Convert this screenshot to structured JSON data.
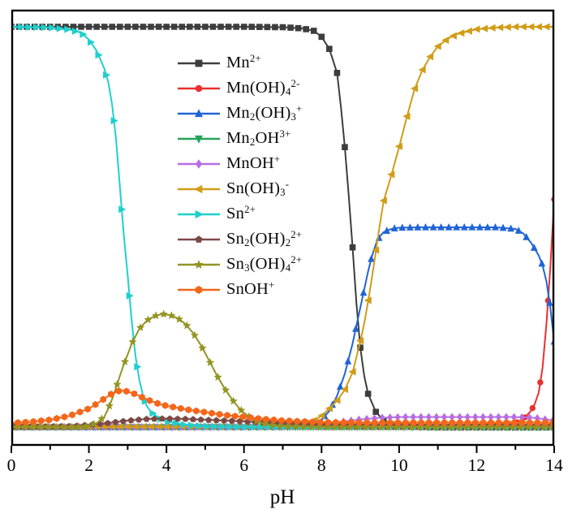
{
  "figure": {
    "background": "#ffffff",
    "frame_color": "#000000"
  },
  "chart_data": {
    "type": "line",
    "title": "",
    "xlabel": "pH",
    "ylabel": "",
    "x_range": [
      0,
      14
    ],
    "y_range": [
      0,
      1.0
    ],
    "x_major_ticks": [
      0,
      2,
      4,
      6,
      8,
      10,
      12,
      14
    ],
    "x_major_tick_labels": [
      "0",
      "2",
      "4",
      "6",
      "8",
      "10",
      "12",
      "14"
    ],
    "x_minor_ticks": [
      1,
      3,
      5,
      7,
      9,
      11,
      13
    ],
    "y_tick_labels": [],
    "grid": false,
    "legend_position": "upper-left-inside",
    "series": [
      {
        "name": "mn2plus",
        "label": "Mn^{2+}",
        "color": "#3d3d3d",
        "marker": "square",
        "marker_size": 3.8,
        "points": [
          [
            0,
            1
          ],
          [
            2,
            1
          ],
          [
            4,
            1
          ],
          [
            6,
            1
          ],
          [
            7,
            0.999
          ],
          [
            7.5,
            0.996
          ],
          [
            7.8,
            0.99
          ],
          [
            8,
            0.975
          ],
          [
            8.2,
            0.945
          ],
          [
            8.4,
            0.885
          ],
          [
            8.5,
            0.8
          ],
          [
            8.6,
            0.7
          ],
          [
            8.7,
            0.58
          ],
          [
            8.8,
            0.45
          ],
          [
            8.9,
            0.31
          ],
          [
            9,
            0.2
          ],
          [
            9.1,
            0.13
          ],
          [
            9.2,
            0.085
          ],
          [
            9.4,
            0.04
          ],
          [
            9.6,
            0.018
          ],
          [
            9.8,
            0.008
          ],
          [
            10,
            0.004
          ],
          [
            10.5,
            0.002
          ],
          [
            11,
            0.001
          ],
          [
            12,
            0.001
          ],
          [
            13,
            0.001
          ],
          [
            14,
            0.001
          ]
        ]
      },
      {
        "name": "mnoh4",
        "label": "Mn(OH)_{4}^{2-}",
        "color": "#e8302f",
        "marker": "circle",
        "marker_size": 3.7,
        "points": [
          [
            0,
            0.002
          ],
          [
            4,
            0.002
          ],
          [
            8,
            0.002
          ],
          [
            10,
            0.002
          ],
          [
            12,
            0.003
          ],
          [
            12.6,
            0.005
          ],
          [
            13,
            0.012
          ],
          [
            13.2,
            0.022
          ],
          [
            13.4,
            0.042
          ],
          [
            13.5,
            0.06
          ],
          [
            13.6,
            0.088
          ],
          [
            13.7,
            0.15
          ],
          [
            13.8,
            0.26
          ],
          [
            13.9,
            0.4
          ],
          [
            13.95,
            0.48
          ],
          [
            14,
            0.57
          ]
        ]
      },
      {
        "name": "mn2oh3",
        "label": "Mn_{2}(OH)_{3}^{+}",
        "color": "#2164d6",
        "marker": "triangle-up",
        "marker_size": 4.6,
        "points": [
          [
            0,
            0.002
          ],
          [
            4,
            0.002
          ],
          [
            7,
            0.003
          ],
          [
            7.5,
            0.005
          ],
          [
            7.8,
            0.01
          ],
          [
            8,
            0.02
          ],
          [
            8.2,
            0.042
          ],
          [
            8.4,
            0.08
          ],
          [
            8.6,
            0.135
          ],
          [
            8.8,
            0.21
          ],
          [
            9,
            0.3
          ],
          [
            9.1,
            0.345
          ],
          [
            9.2,
            0.39
          ],
          [
            9.3,
            0.428
          ],
          [
            9.4,
            0.458
          ],
          [
            9.5,
            0.477
          ],
          [
            9.6,
            0.488
          ],
          [
            9.8,
            0.496
          ],
          [
            10,
            0.499
          ],
          [
            10.5,
            0.5
          ],
          [
            11,
            0.5
          ],
          [
            12,
            0.5
          ],
          [
            12.5,
            0.5
          ],
          [
            13,
            0.496
          ],
          [
            13.2,
            0.485
          ],
          [
            13.4,
            0.462
          ],
          [
            13.6,
            0.43
          ],
          [
            13.7,
            0.405
          ],
          [
            13.8,
            0.365
          ],
          [
            13.9,
            0.3
          ],
          [
            14,
            0.215
          ]
        ]
      },
      {
        "name": "mn2oh",
        "label": "Mn_{2}OH^{3+}",
        "color": "#27a35a",
        "marker": "triangle-down",
        "marker_size": 4.6,
        "points": [
          [
            0,
            0.002
          ],
          [
            2,
            0.002
          ],
          [
            4,
            0.002
          ],
          [
            6,
            0.002
          ],
          [
            8,
            0.002
          ],
          [
            10,
            0.002
          ],
          [
            12,
            0.002
          ],
          [
            14,
            0.002
          ]
        ]
      },
      {
        "name": "mnoh",
        "label": "MnOH^{+}",
        "color": "#b76ee2",
        "marker": "diamond",
        "marker_size": 4.2,
        "points": [
          [
            0,
            0.002
          ],
          [
            2,
            0.002
          ],
          [
            4,
            0.002
          ],
          [
            6,
            0.002
          ],
          [
            7,
            0.003
          ],
          [
            7.5,
            0.005
          ],
          [
            8,
            0.009
          ],
          [
            8.5,
            0.015
          ],
          [
            9,
            0.021
          ],
          [
            9.5,
            0.025
          ],
          [
            10,
            0.027
          ],
          [
            11,
            0.027
          ],
          [
            12,
            0.027
          ],
          [
            13,
            0.027
          ],
          [
            13.5,
            0.025
          ],
          [
            14,
            0.018
          ]
        ]
      },
      {
        "name": "snoh3",
        "label": "Sn(OH)_{3}^{-}",
        "color": "#d19c18",
        "marker": "triangle-left",
        "marker_size": 4.8,
        "points": [
          [
            0,
            0.003
          ],
          [
            2,
            0.003
          ],
          [
            4,
            0.003
          ],
          [
            6,
            0.003
          ],
          [
            7,
            0.004
          ],
          [
            7.5,
            0.008
          ],
          [
            7.8,
            0.018
          ],
          [
            8,
            0.03
          ],
          [
            8.2,
            0.048
          ],
          [
            8.4,
            0.068
          ],
          [
            8.6,
            0.095
          ],
          [
            8.8,
            0.138
          ],
          [
            9,
            0.215
          ],
          [
            9.1,
            0.26
          ],
          [
            9.2,
            0.315
          ],
          [
            9.3,
            0.375
          ],
          [
            9.4,
            0.44
          ],
          [
            9.5,
            0.505
          ],
          [
            9.6,
            0.565
          ],
          [
            9.8,
            0.63
          ],
          [
            10,
            0.7
          ],
          [
            10.2,
            0.775
          ],
          [
            10.4,
            0.845
          ],
          [
            10.6,
            0.892
          ],
          [
            10.8,
            0.925
          ],
          [
            11,
            0.951
          ],
          [
            11.25,
            0.97
          ],
          [
            11.5,
            0.982
          ],
          [
            12,
            0.994
          ],
          [
            12.5,
            0.998
          ],
          [
            13,
            1
          ],
          [
            13.5,
            1
          ],
          [
            14,
            1
          ]
        ]
      },
      {
        "name": "sn2plus",
        "label": "Sn^{2+}",
        "color": "#1ed0cd",
        "marker": "triangle-right",
        "marker_size": 4.8,
        "points": [
          [
            0,
            1
          ],
          [
            1,
            0.998
          ],
          [
            1.5,
            0.993
          ],
          [
            1.8,
            0.985
          ],
          [
            2,
            0.968
          ],
          [
            2.2,
            0.94
          ],
          [
            2.4,
            0.895
          ],
          [
            2.5,
            0.862
          ],
          [
            2.6,
            0.805
          ],
          [
            2.7,
            0.72
          ],
          [
            2.8,
            0.6
          ],
          [
            2.9,
            0.48
          ],
          [
            3,
            0.38
          ],
          [
            3.1,
            0.27
          ],
          [
            3.2,
            0.18
          ],
          [
            3.3,
            0.12
          ],
          [
            3.4,
            0.078
          ],
          [
            3.5,
            0.053
          ],
          [
            3.6,
            0.04
          ],
          [
            3.8,
            0.024
          ],
          [
            4,
            0.016
          ],
          [
            4.5,
            0.007
          ],
          [
            5,
            0.004
          ],
          [
            6,
            0.002
          ],
          [
            7,
            0.002
          ],
          [
            8,
            0.002
          ],
          [
            10,
            0.002
          ],
          [
            12,
            0.002
          ],
          [
            14,
            0.002
          ]
        ]
      },
      {
        "name": "sn2oh2",
        "label": "Sn_{2}(OH)_{2}^{2+}",
        "color": "#7c4a46",
        "marker": "pentagon",
        "marker_size": 4.2,
        "points": [
          [
            0,
            0.002
          ],
          [
            1,
            0.003
          ],
          [
            1.5,
            0.004
          ],
          [
            2,
            0.007
          ],
          [
            2.5,
            0.012
          ],
          [
            3,
            0.018
          ],
          [
            3.5,
            0.022
          ],
          [
            4,
            0.023
          ],
          [
            4.5,
            0.022
          ],
          [
            5,
            0.02
          ],
          [
            5.5,
            0.018
          ],
          [
            6,
            0.016
          ],
          [
            6.5,
            0.013
          ],
          [
            7,
            0.011
          ],
          [
            7.5,
            0.009
          ],
          [
            8,
            0.007
          ],
          [
            8.5,
            0.005
          ],
          [
            9,
            0.004
          ],
          [
            10,
            0.003
          ],
          [
            12,
            0.003
          ],
          [
            14,
            0.003
          ]
        ]
      },
      {
        "name": "sn3oh4",
        "label": "Sn_{3}(OH)_{4}^{2+}",
        "color": "#939422",
        "marker": "star",
        "marker_size": 5.4,
        "points": [
          [
            0,
            0.002
          ],
          [
            1.5,
            0.002
          ],
          [
            1.8,
            0.003
          ],
          [
            2,
            0.005
          ],
          [
            2.2,
            0.012
          ],
          [
            2.4,
            0.028
          ],
          [
            2.5,
            0.048
          ],
          [
            2.6,
            0.072
          ],
          [
            2.7,
            0.1
          ],
          [
            2.8,
            0.13
          ],
          [
            2.9,
            0.158
          ],
          [
            3,
            0.183
          ],
          [
            3.1,
            0.209
          ],
          [
            3.2,
            0.228
          ],
          [
            3.3,
            0.247
          ],
          [
            3.5,
            0.268
          ],
          [
            3.7,
            0.279
          ],
          [
            3.9,
            0.284
          ],
          [
            4.1,
            0.281
          ],
          [
            4.3,
            0.273
          ],
          [
            4.5,
            0.258
          ],
          [
            4.7,
            0.235
          ],
          [
            4.9,
            0.204
          ],
          [
            5.1,
            0.168
          ],
          [
            5.3,
            0.131
          ],
          [
            5.5,
            0.098
          ],
          [
            5.7,
            0.07
          ],
          [
            5.9,
            0.046
          ],
          [
            6.1,
            0.03
          ],
          [
            6.3,
            0.018
          ],
          [
            6.5,
            0.011
          ],
          [
            6.7,
            0.007
          ],
          [
            7,
            0.004
          ],
          [
            7.5,
            0.003
          ],
          [
            8,
            0.002
          ],
          [
            10,
            0.002
          ],
          [
            12,
            0.002
          ],
          [
            14,
            0.002
          ]
        ]
      },
      {
        "name": "snoh",
        "label": "SnOH^{+}",
        "color": "#f4661a",
        "marker": "hexagon",
        "marker_size": 4.4,
        "points": [
          [
            0,
            0.012
          ],
          [
            0.5,
            0.015
          ],
          [
            1,
            0.02
          ],
          [
            1.5,
            0.03
          ],
          [
            2,
            0.048
          ],
          [
            2.2,
            0.06
          ],
          [
            2.4,
            0.073
          ],
          [
            2.6,
            0.086
          ],
          [
            2.8,
            0.093
          ],
          [
            3,
            0.091
          ],
          [
            3.2,
            0.084
          ],
          [
            3.4,
            0.075
          ],
          [
            3.6,
            0.067
          ],
          [
            3.8,
            0.06
          ],
          [
            4,
            0.055
          ],
          [
            4.5,
            0.046
          ],
          [
            5,
            0.039
          ],
          [
            5.5,
            0.032
          ],
          [
            6,
            0.027
          ],
          [
            6.5,
            0.022
          ],
          [
            7,
            0.018
          ],
          [
            7.5,
            0.016
          ],
          [
            8,
            0.014
          ],
          [
            9,
            0.013
          ],
          [
            10,
            0.013
          ],
          [
            11,
            0.013
          ],
          [
            12,
            0.013
          ],
          [
            13,
            0.013
          ],
          [
            14,
            0.013
          ]
        ]
      }
    ]
  }
}
